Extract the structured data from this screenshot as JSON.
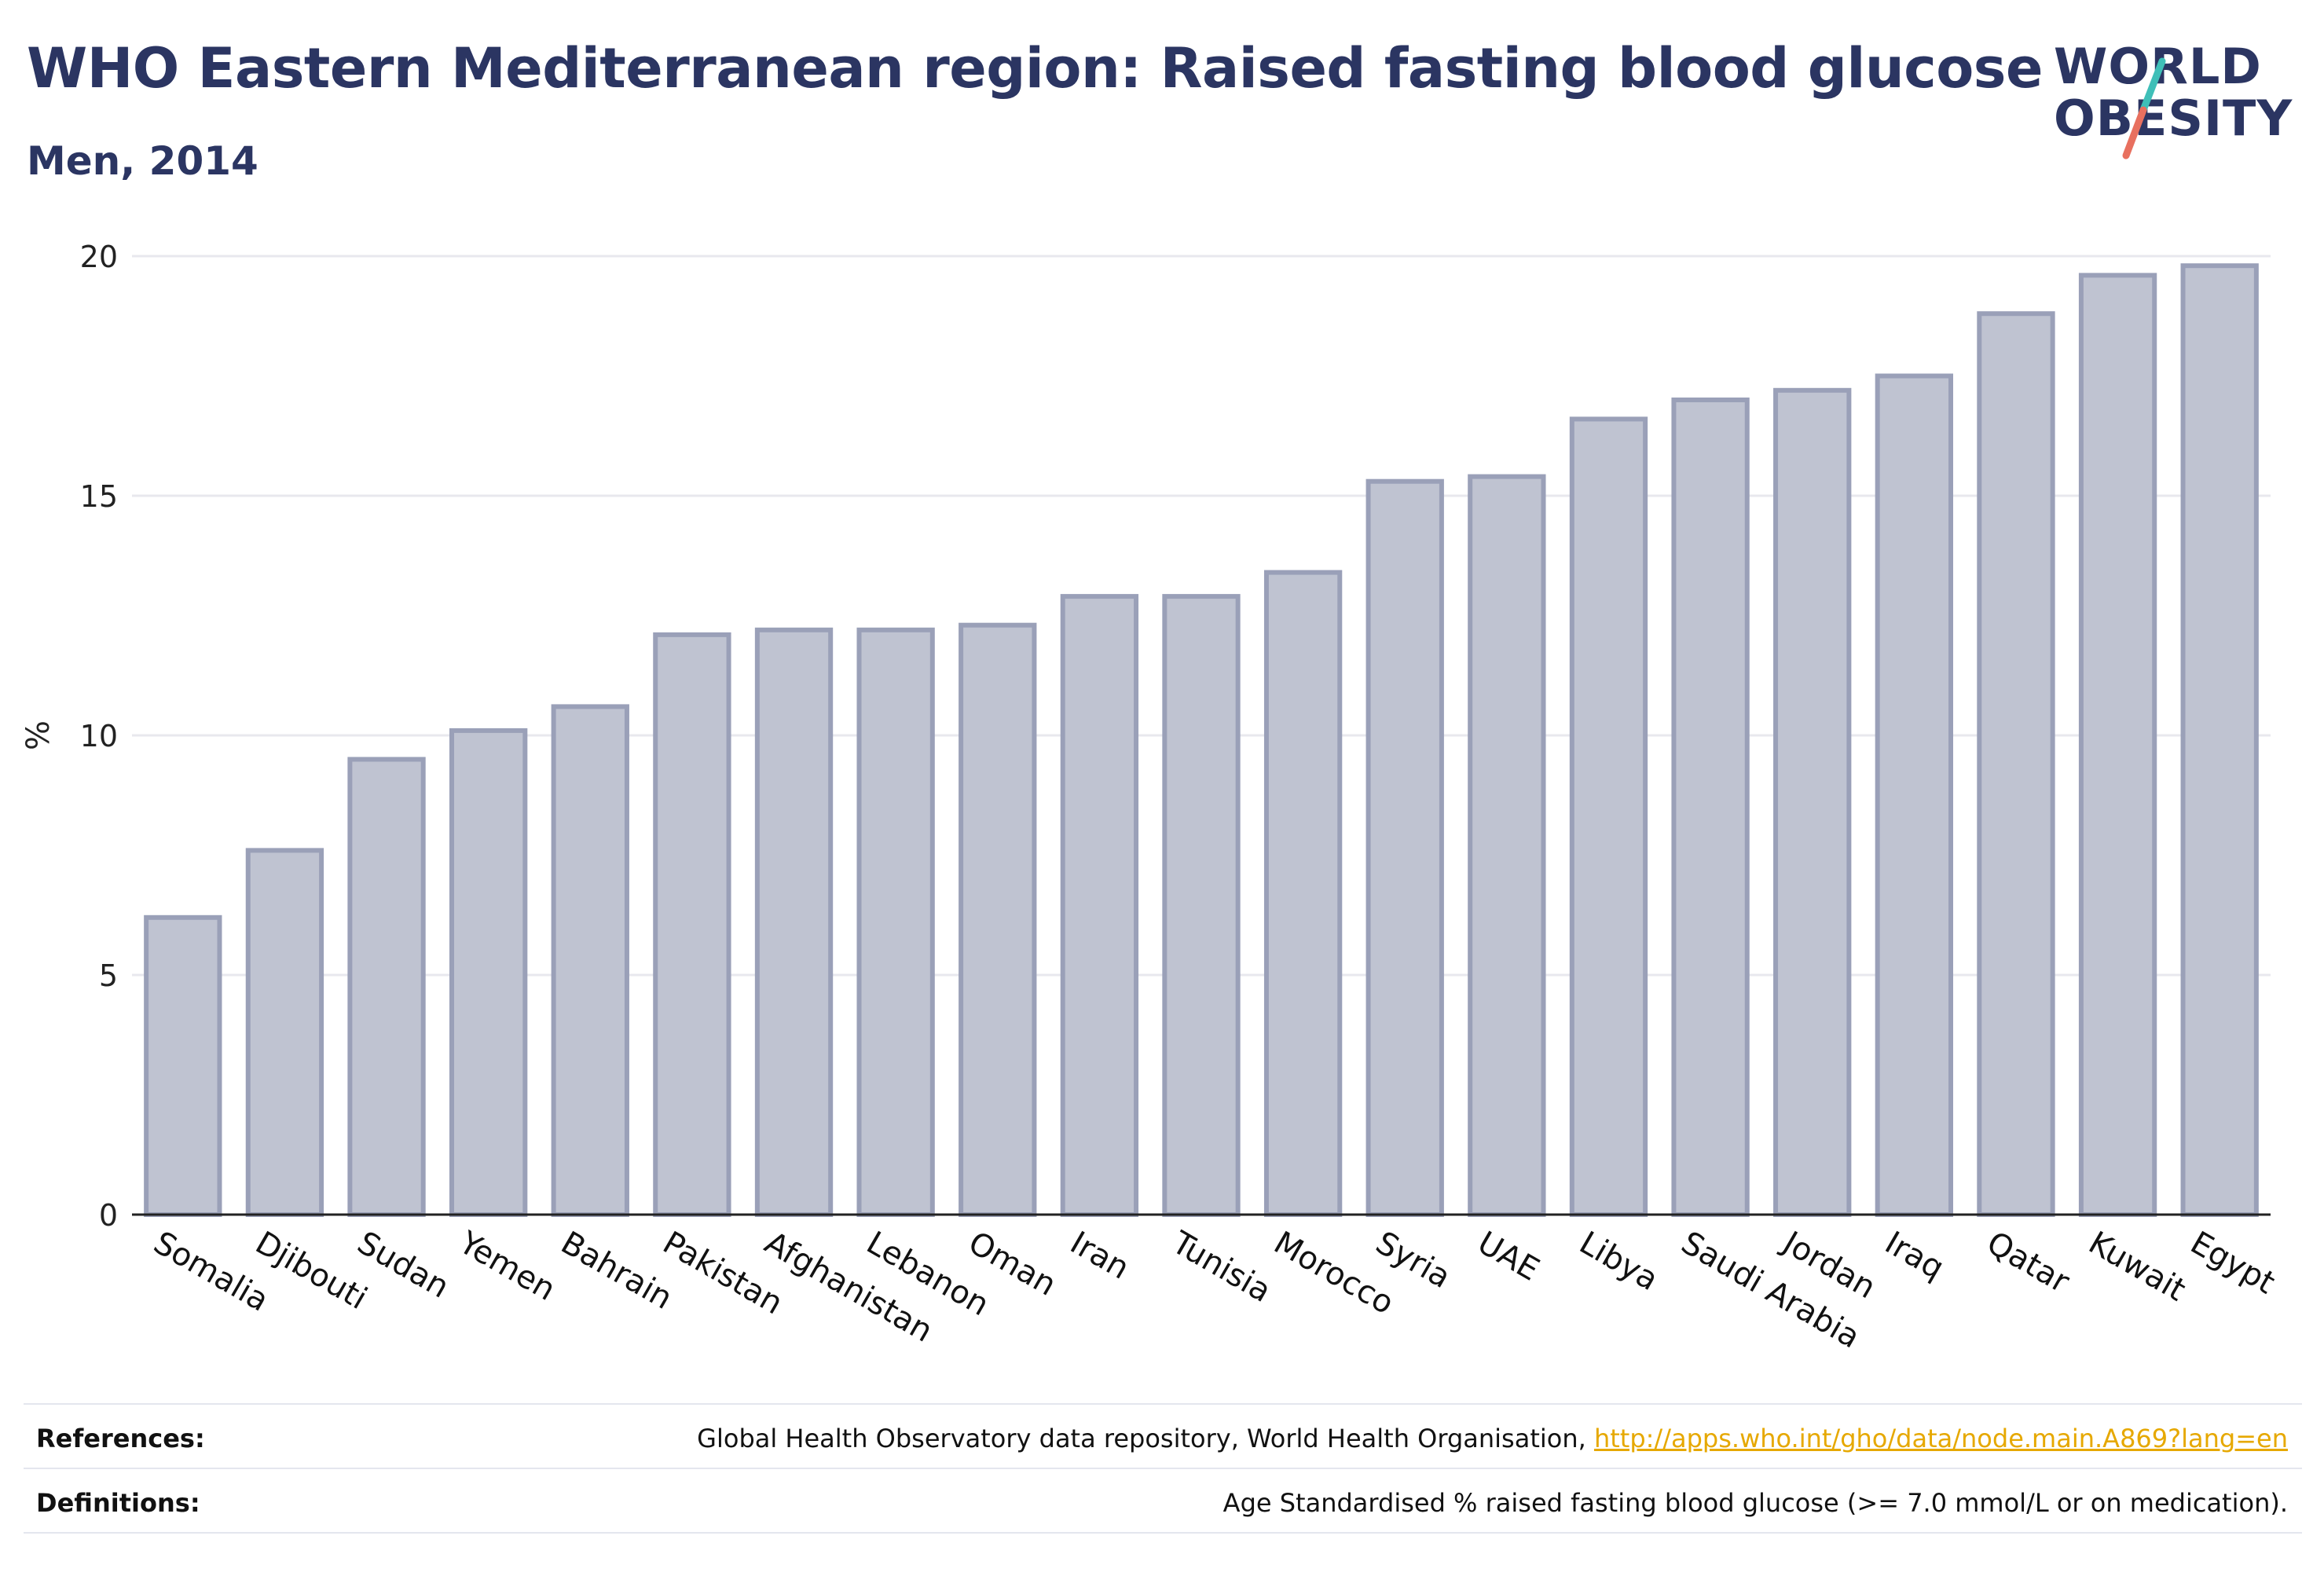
{
  "header": {
    "title": "WHO Eastern Mediterranean region: Raised fasting blood glucose",
    "subtitle": "Men, 2014"
  },
  "logo": {
    "line1": "WORLD",
    "line2": "OBESITY",
    "accent_teal": "#3fbfb8",
    "accent_coral": "#e8705f"
  },
  "colors": {
    "bar_fill": "#bfc3d1",
    "bar_stroke": "#9aa0b8",
    "grid": "#e8e8ee",
    "axis": "#222222",
    "brand_navy": "#2b3562"
  },
  "chart_data": {
    "type": "bar",
    "ylabel": "%",
    "ylim": [
      0,
      20
    ],
    "yticks": [
      0,
      5,
      10,
      15,
      20
    ],
    "grid": true,
    "categories": [
      "Somalia",
      "Djibouti",
      "Sudan",
      "Yemen",
      "Bahrain",
      "Pakistan",
      "Afghanistan",
      "Lebanon",
      "Oman",
      "Iran",
      "Tunisia",
      "Morocco",
      "Syria",
      "UAE",
      "Libya",
      "Saudi Arabia",
      "Jordan",
      "Iraq",
      "Qatar",
      "Kuwait",
      "Egypt"
    ],
    "values": [
      6.2,
      7.6,
      9.5,
      10.1,
      10.6,
      12.1,
      12.2,
      12.2,
      12.3,
      12.9,
      12.9,
      13.4,
      15.3,
      15.4,
      16.6,
      17.0,
      17.2,
      17.5,
      18.8,
      19.6,
      19.8
    ]
  },
  "footer": {
    "references_label": "References:",
    "references_text": "Global Health Observatory data repository, World Health Organisation, ",
    "references_link": "http://apps.who.int/gho/data/node.main.A869?lang=en",
    "definitions_label": "Definitions:",
    "definitions_text": "Age Standardised % raised fasting blood glucose (>= 7.0 mmol/L or on medication)."
  }
}
